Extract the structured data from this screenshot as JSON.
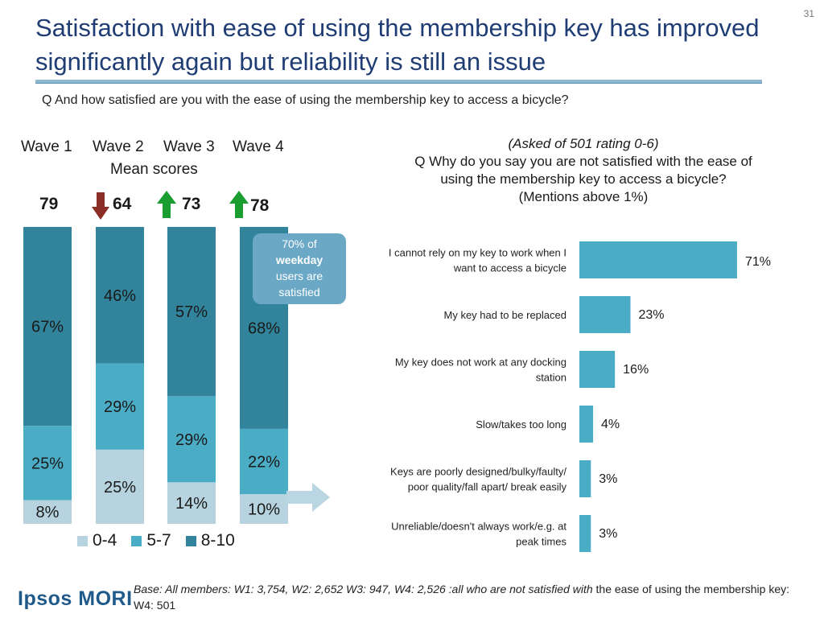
{
  "page_number": "31",
  "title": "Satisfaction with ease of using the membership key has improved significantly again but reliability is still an issue",
  "question": "Q And how satisfied are you with the ease of using the membership key to access a bicycle?",
  "left_chart": {
    "wave_labels": [
      "Wave 1",
      "Wave 2",
      "Wave 3",
      "Wave 4"
    ],
    "mean_caption": "Mean scores",
    "mean_scores": [
      "79",
      "64",
      "73",
      "78"
    ],
    "score_changes": [
      "none",
      "down",
      "up",
      "up"
    ],
    "callout": {
      "line1": "70% of",
      "line2": "weekday",
      "line3": "users are",
      "line4": "satisfied"
    }
  },
  "chart_data": [
    {
      "type": "bar",
      "stacked": true,
      "categories": [
        "Wave 1",
        "Wave 2",
        "Wave 3",
        "Wave 4"
      ],
      "series": [
        {
          "name": "0-4",
          "values": [
            8,
            25,
            14,
            10
          ],
          "color": "#b6d3df"
        },
        {
          "name": "5-7",
          "values": [
            25,
            29,
            29,
            22
          ],
          "color": "#4bacc6"
        },
        {
          "name": "8-10",
          "values": [
            67,
            46,
            57,
            68
          ],
          "color": "#31849b"
        }
      ],
      "data_labels": [
        [
          "8%",
          "25%",
          "14%",
          "10%"
        ],
        [
          "25%",
          "29%",
          "29%",
          "22%"
        ],
        [
          "67%",
          "46%",
          "57%",
          "68%"
        ]
      ],
      "ylim": [
        0,
        100
      ],
      "legend": "bottom"
    },
    {
      "type": "bar",
      "orientation": "horizontal",
      "categories": [
        [
          "I cannot rely on my key to work when I",
          "want to access a bicycle"
        ],
        [
          "My key had to be replaced"
        ],
        [
          "My key does not work at any docking",
          "station"
        ],
        [
          "Slow/takes too long"
        ],
        [
          "Keys are poorly designed/bulky/faulty/",
          "poor quality/fall apart/ break easily"
        ],
        [
          "Unreliable/doesn't always work/e.g. at",
          "peak times"
        ]
      ],
      "values": [
        71,
        23,
        16,
        4,
        3,
        3
      ],
      "data_labels": [
        "71%",
        "23%",
        "16%",
        "4%",
        "3%",
        "3%"
      ],
      "header": {
        "line1": "(Asked of 501 rating 0-6)",
        "line2": "Q Why do you say you are not satisfied with the ease of",
        "line3": "using the membership key to access a bicycle?",
        "line4": "(Mentions above 1%)"
      },
      "color": "#4bacc6",
      "xlim": [
        0,
        100
      ]
    }
  ],
  "footer": {
    "logo": "Ipsos MORI",
    "base_italic": "Base: All members: W1: 3,754, W2: 2,652 W3: 947, W4: 2,526 :all who are not satisfied with",
    "base_normal": " the ease of using the membership key: W4: 501"
  },
  "colors": {
    "title": "#1f3d74",
    "dark_teal": "#31849b",
    "mid_blue": "#4bacc6",
    "light_blue": "#b6d3df",
    "up_arrow": "#1a9e2f",
    "down_arrow": "#8b2d24"
  }
}
